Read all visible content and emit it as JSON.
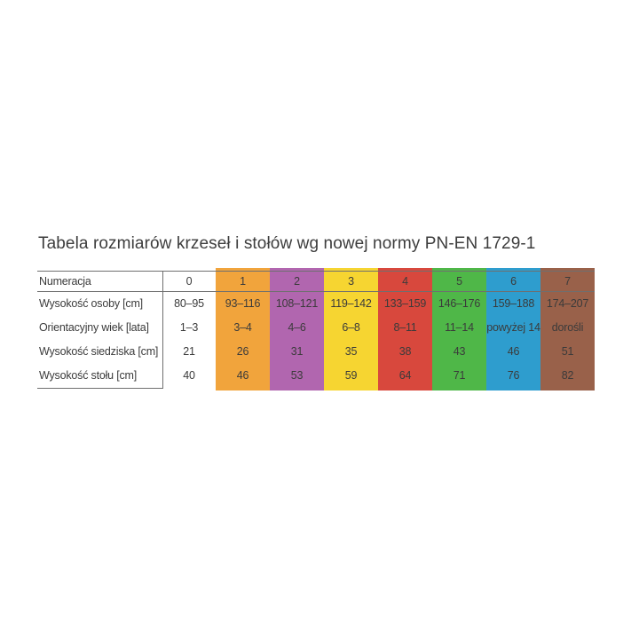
{
  "title": "Tabela rozmiarów krzeseł i stołów wg nowej normy PN-EN 1729-1",
  "chart_data": {
    "type": "table",
    "title": "Tabela rozmiarów krzeseł i stołów wg nowej normy PN-EN 1729-1",
    "header": {
      "row_label": "Numeracja",
      "column_labels": [
        "0",
        "1",
        "2",
        "3",
        "4",
        "5",
        "6",
        "7"
      ]
    },
    "rows": [
      {
        "label": "Wysokość osoby [cm]",
        "values": [
          "80–95",
          "93–116",
          "108–121",
          "119–142",
          "133–159",
          "146–176",
          "159–188",
          "174–207"
        ]
      },
      {
        "label": "Orientacyjny wiek [lata]",
        "values": [
          "1–3",
          "3–4",
          "4–6",
          "6–8",
          "8–11",
          "11–14",
          "powyżej 14",
          "dorośli"
        ]
      },
      {
        "label": "Wysokość siedziska [cm]",
        "values": [
          "21",
          "26",
          "31",
          "35",
          "38",
          "43",
          "46",
          "51"
        ]
      },
      {
        "label": "Wysokość stołu [cm]",
        "values": [
          "40",
          "46",
          "53",
          "59",
          "64",
          "71",
          "76",
          "82"
        ]
      }
    ],
    "column_colors": [
      "#ffffff",
      "#f1a43c",
      "#b166af",
      "#f6d531",
      "#d8483d",
      "#4fb748",
      "#2e9dce",
      "#99614a"
    ],
    "text_color": "#3b3b3b",
    "line_color": "#6f6f6f",
    "layout": {
      "grid": "off",
      "legend": "none"
    }
  }
}
